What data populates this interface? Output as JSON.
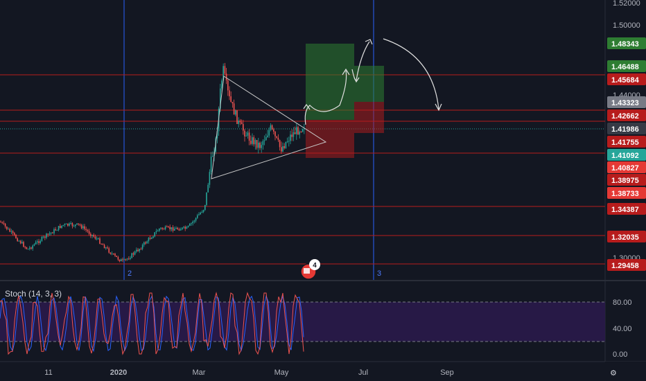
{
  "main_price_axis": {
    "ticks": [
      "1.52000",
      "1.50000",
      "1.44000",
      "1.30000"
    ]
  },
  "price_tags": [
    {
      "value": "1.48343",
      "bg": "#2e7d32",
      "fg": "#ffffff"
    },
    {
      "value": "1.46488",
      "bg": "#2e7d32",
      "fg": "#ffffff"
    },
    {
      "value": "1.45684",
      "bg": "#b71c1c",
      "fg": "#ffffff"
    },
    {
      "value": "1.43323",
      "bg": "#787b86",
      "fg": "#ffffff"
    },
    {
      "value": "1.42662",
      "bg": "#b71c1c",
      "fg": "#ffffff"
    },
    {
      "value": "1.41986",
      "bg": "#363a45",
      "fg": "#ffffff"
    },
    {
      "value": "1.41755",
      "bg": "#b71c1c",
      "fg": "#ffffff"
    },
    {
      "value": "1.41092",
      "bg": "#26a69a",
      "fg": "#ffffff"
    },
    {
      "value": "1.40827",
      "bg": "#e53935",
      "fg": "#ffffff"
    },
    {
      "value": "1.38975",
      "bg": "#b71c1c",
      "fg": "#ffffff"
    },
    {
      "value": "1.38733",
      "bg": "#e53935",
      "fg": "#ffffff"
    },
    {
      "value": "1.34387",
      "bg": "#b71c1c",
      "fg": "#ffffff"
    },
    {
      "value": "1.32035",
      "bg": "#b71c1c",
      "fg": "#ffffff"
    },
    {
      "value": "1.29458",
      "bg": "#b71c1c",
      "fg": "#ffffff"
    }
  ],
  "vertical_markers": [
    "2",
    "3"
  ],
  "event_badge_count": "4",
  "stoch_panel": {
    "label": "Stoch (14, 3, 3)",
    "ticks": [
      "80.00",
      "40.00",
      "0.00"
    ],
    "band_color": "#2a1a4a"
  },
  "time_axis": {
    "ticks": [
      "11",
      "2020",
      "Mar",
      "May",
      "Jul",
      "Sep"
    ]
  },
  "colors": {
    "background": "#131722",
    "up_candle": "#26a69a",
    "down_candle": "#ef5350",
    "level_line": "#b71c1c",
    "marker_line": "#2962ff",
    "profit_zone": "#2e7d32",
    "loss_zone": "#b71c1c",
    "stoch_k": "#ef5350",
    "stoch_d": "#2962ff"
  }
}
